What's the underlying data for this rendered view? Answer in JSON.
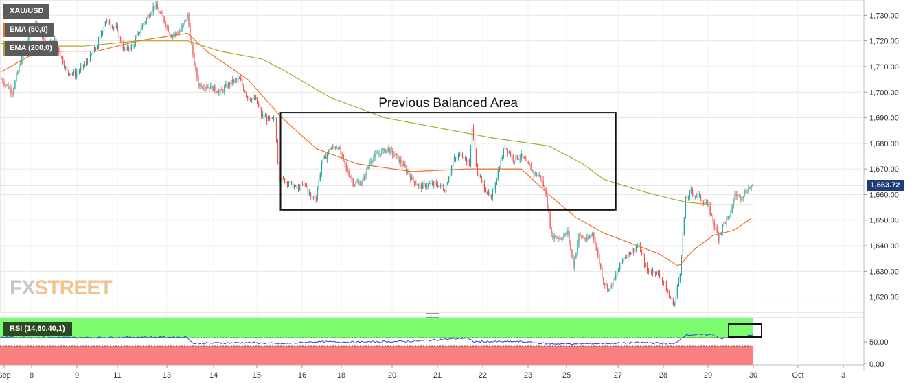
{
  "legend": {
    "symbol": "XAU/USD",
    "ema50_label": "EMA (50,0)",
    "ema200_label": "EMA (200,0)",
    "ema50_color": "#e8702a",
    "ema200_color": "#b5a42a"
  },
  "watermark": {
    "fx": "FX",
    "street": "STREET"
  },
  "annotation": {
    "box_label": "Previous Balanced Area"
  },
  "current_price": {
    "label": "1,663.72",
    "value": 1663.72,
    "color": "#1f3c7a"
  },
  "rsi": {
    "label": "RSI (14,60,40,1)",
    "upper_zone_color": "#7cfc6e",
    "lower_zone_color": "#f98080",
    "line_color": "#2a3fd4",
    "ticks": [
      {
        "value": 50,
        "label": "50.00"
      },
      {
        "value": 0,
        "label": "0.00"
      }
    ]
  },
  "colors": {
    "up": "#26a69a",
    "down": "#ef5350",
    "grid": "#e6e6e6"
  },
  "chart_data": {
    "type": "candlestick",
    "title": "XAU/USD",
    "ylim": [
      1614,
      1736
    ],
    "y_ticks": [
      1620,
      1630,
      1640,
      1650,
      1660,
      1670,
      1680,
      1690,
      1700,
      1710,
      1720,
      1730
    ],
    "y_tick_labels": [
      "1,620.00",
      "1,630.00",
      "1,640.00",
      "1,650.00",
      "1,660.00",
      "1,670.00",
      "1,680.00",
      "1,690.00",
      "1,700.00",
      "1,710.00",
      "1,720.00",
      "1,730.00"
    ],
    "x_tick_labels": [
      "Sep",
      "8",
      "9",
      "11",
      "13",
      "14",
      "15",
      "16",
      "18",
      "20",
      "21",
      "22",
      "23",
      "25",
      "27",
      "28",
      "29",
      "30",
      "Oct",
      "3"
    ],
    "price_anchors": [
      [
        0,
        1705
      ],
      [
        8,
        1700
      ],
      [
        14,
        1712
      ],
      [
        20,
        1722
      ],
      [
        27,
        1727
      ],
      [
        33,
        1718
      ],
      [
        39,
        1720
      ],
      [
        48,
        1708
      ],
      [
        54,
        1707
      ],
      [
        63,
        1712
      ],
      [
        70,
        1718
      ],
      [
        76,
        1728
      ],
      [
        84,
        1725
      ],
      [
        90,
        1716
      ],
      [
        96,
        1718
      ],
      [
        104,
        1727
      ],
      [
        112,
        1734
      ],
      [
        118,
        1729
      ],
      [
        124,
        1722
      ],
      [
        131,
        1724
      ],
      [
        136,
        1730
      ],
      [
        140,
        1714
      ],
      [
        144,
        1703
      ],
      [
        152,
        1702
      ],
      [
        160,
        1700
      ],
      [
        168,
        1704
      ],
      [
        174,
        1705
      ],
      [
        180,
        1698
      ],
      [
        186,
        1697
      ],
      [
        190,
        1691
      ],
      [
        196,
        1689
      ],
      [
        200,
        1689
      ],
      [
        203,
        1666
      ],
      [
        210,
        1665
      ],
      [
        216,
        1662
      ],
      [
        222,
        1664
      ],
      [
        226,
        1659
      ],
      [
        230,
        1659
      ],
      [
        234,
        1672
      ],
      [
        240,
        1678
      ],
      [
        246,
        1679
      ],
      [
        252,
        1670
      ],
      [
        258,
        1664
      ],
      [
        264,
        1665
      ],
      [
        270,
        1674
      ],
      [
        276,
        1676
      ],
      [
        282,
        1678
      ],
      [
        288,
        1675
      ],
      [
        294,
        1671
      ],
      [
        300,
        1666
      ],
      [
        306,
        1663
      ],
      [
        312,
        1664
      ],
      [
        318,
        1664
      ],
      [
        324,
        1662
      ],
      [
        330,
        1673
      ],
      [
        336,
        1676
      ],
      [
        342,
        1672
      ],
      [
        344,
        1686
      ],
      [
        348,
        1668
      ],
      [
        354,
        1662
      ],
      [
        358,
        1658
      ],
      [
        362,
        1667
      ],
      [
        368,
        1679
      ],
      [
        374,
        1674
      ],
      [
        380,
        1675
      ],
      [
        384,
        1672
      ],
      [
        390,
        1668
      ],
      [
        394,
        1667
      ],
      [
        398,
        1660
      ],
      [
        402,
        1644
      ],
      [
        408,
        1643
      ],
      [
        414,
        1645
      ],
      [
        418,
        1632
      ],
      [
        422,
        1644
      ],
      [
        428,
        1642
      ],
      [
        432,
        1645
      ],
      [
        436,
        1636
      ],
      [
        440,
        1626
      ],
      [
        444,
        1623
      ],
      [
        448,
        1627
      ],
      [
        454,
        1635
      ],
      [
        460,
        1638
      ],
      [
        466,
        1640
      ],
      [
        472,
        1630
      ],
      [
        478,
        1630
      ],
      [
        484,
        1626
      ],
      [
        488,
        1620
      ],
      [
        492,
        1617
      ],
      [
        496,
        1630
      ],
      [
        500,
        1658
      ],
      [
        504,
        1661
      ],
      [
        510,
        1659
      ],
      [
        516,
        1656
      ],
      [
        520,
        1650
      ],
      [
        524,
        1643
      ],
      [
        528,
        1649
      ],
      [
        532,
        1651
      ],
      [
        536,
        1660
      ],
      [
        540,
        1659
      ],
      [
        545,
        1662
      ],
      [
        549,
        1663.72
      ]
    ],
    "ema50_anchors": [
      [
        0,
        1708
      ],
      [
        20,
        1714
      ],
      [
        45,
        1716
      ],
      [
        70,
        1716
      ],
      [
        100,
        1720
      ],
      [
        136,
        1723
      ],
      [
        150,
        1716
      ],
      [
        180,
        1705
      ],
      [
        205,
        1690
      ],
      [
        230,
        1678
      ],
      [
        260,
        1672
      ],
      [
        300,
        1669
      ],
      [
        340,
        1670
      ],
      [
        380,
        1670
      ],
      [
        400,
        1660
      ],
      [
        420,
        1651
      ],
      [
        440,
        1645
      ],
      [
        460,
        1641
      ],
      [
        480,
        1637
      ],
      [
        495,
        1632
      ],
      [
        505,
        1638
      ],
      [
        520,
        1644
      ],
      [
        535,
        1646
      ],
      [
        549,
        1651
      ]
    ],
    "ema200_anchors": [
      [
        0,
        1719
      ],
      [
        30,
        1718
      ],
      [
        60,
        1718
      ],
      [
        100,
        1720
      ],
      [
        136,
        1720
      ],
      [
        160,
        1716
      ],
      [
        190,
        1713
      ],
      [
        205,
        1709
      ],
      [
        240,
        1698
      ],
      [
        280,
        1690
      ],
      [
        320,
        1686
      ],
      [
        360,
        1682
      ],
      [
        400,
        1679
      ],
      [
        425,
        1672
      ],
      [
        440,
        1666
      ],
      [
        470,
        1661
      ],
      [
        500,
        1657
      ],
      [
        520,
        1656
      ],
      [
        549,
        1656
      ]
    ],
    "balanced_area": {
      "x_start": 204,
      "x_end": 449,
      "price_low": 1654,
      "price_high": 1692
    },
    "rsi_anchors": [
      [
        0,
        58
      ],
      [
        30,
        57
      ],
      [
        60,
        57
      ],
      [
        100,
        58
      ],
      [
        136,
        58
      ],
      [
        140,
        43
      ],
      [
        180,
        45
      ],
      [
        205,
        42
      ],
      [
        230,
        47
      ],
      [
        260,
        46
      ],
      [
        300,
        48
      ],
      [
        340,
        56
      ],
      [
        345,
        47
      ],
      [
        380,
        47
      ],
      [
        400,
        42
      ],
      [
        420,
        42
      ],
      [
        440,
        43
      ],
      [
        470,
        45
      ],
      [
        492,
        42
      ],
      [
        500,
        64
      ],
      [
        520,
        65
      ],
      [
        526,
        55
      ],
      [
        540,
        58
      ],
      [
        549,
        64
      ]
    ]
  }
}
